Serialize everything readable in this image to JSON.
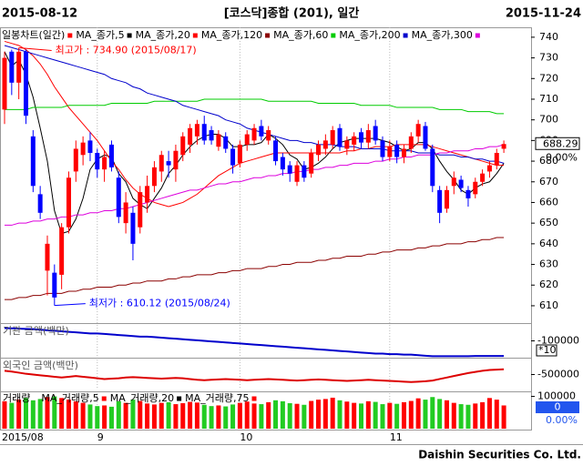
{
  "header": {
    "start_date": "2015-08-12",
    "title": "[코스닥]종합 (201), 일간",
    "end_date": "2015-11-24"
  },
  "footer": "Daishin Securities Co. Ltd.",
  "chart_data": [
    {
      "type": "candlestick",
      "series_label": "일봉차트(일간)",
      "label_color": "#ff0000",
      "categories": [
        "2015/08",
        null,
        null,
        null,
        null,
        null,
        null,
        null,
        null,
        null,
        null,
        null,
        null,
        "9",
        null,
        null,
        null,
        null,
        null,
        null,
        null,
        null,
        null,
        null,
        null,
        null,
        null,
        null,
        null,
        null,
        null,
        null,
        null,
        "10",
        null,
        null,
        null,
        null,
        null,
        null,
        null,
        null,
        null,
        null,
        null,
        null,
        null,
        null,
        null,
        null,
        null,
        null,
        null,
        null,
        "11",
        null,
        null,
        null,
        null,
        null,
        null,
        null,
        null,
        null,
        null,
        null,
        null,
        null,
        null,
        null,
        null
      ],
      "open": [
        705,
        733,
        718,
        733,
        692,
        664,
        627,
        626,
        625,
        648,
        675,
        683,
        690,
        684,
        676,
        688,
        672,
        650,
        655,
        648,
        660,
        668,
        675,
        680,
        676,
        683,
        688,
        692,
        698,
        695,
        687,
        692,
        686,
        679,
        688,
        690,
        697,
        690,
        690,
        682,
        678,
        670,
        678,
        674,
        683,
        686,
        688,
        696,
        686,
        688,
        694,
        689,
        697,
        690,
        682,
        688,
        682,
        686,
        692,
        697,
        686,
        666,
        657,
        668,
        671,
        666,
        664,
        670,
        675,
        678,
        686
      ],
      "high": [
        733,
        734,
        734.9,
        734,
        695,
        668,
        644,
        630,
        650,
        675,
        690,
        692,
        694,
        686,
        685,
        690,
        675,
        665,
        658,
        668,
        673,
        680,
        685,
        685,
        688,
        694,
        698,
        700,
        702,
        697,
        695,
        694,
        688,
        690,
        695,
        698,
        700,
        697,
        692,
        684,
        680,
        680,
        680,
        686,
        690,
        693,
        697,
        698,
        692,
        694,
        696,
        698,
        700,
        692,
        690,
        690,
        688,
        694,
        700,
        699,
        688,
        668,
        668,
        675,
        673,
        668,
        672,
        676,
        680,
        686,
        690
      ],
      "low": [
        698,
        712,
        710,
        698,
        665,
        652,
        615,
        610.12,
        618,
        645,
        670,
        678,
        680,
        672,
        670,
        675,
        650,
        645,
        632,
        645,
        655,
        665,
        670,
        672,
        670,
        680,
        684,
        688,
        688,
        688,
        685,
        684,
        674,
        677,
        685,
        688,
        690,
        688,
        678,
        673,
        670,
        668,
        670,
        672,
        680,
        683,
        686,
        685,
        683,
        685,
        686,
        686,
        688,
        680,
        680,
        679,
        679,
        684,
        689,
        685,
        665,
        650,
        655,
        664,
        665,
        658,
        662,
        668,
        672,
        676,
        684
      ],
      "close": [
        730,
        718,
        733,
        702,
        668,
        655,
        640,
        614,
        648,
        672,
        686,
        689,
        684,
        676,
        682,
        677,
        653,
        660,
        640,
        665,
        668,
        677,
        683,
        678,
        685,
        692,
        696,
        698,
        690,
        690,
        693,
        686,
        678,
        688,
        693,
        696,
        692,
        695,
        680,
        676,
        674,
        678,
        672,
        684,
        688,
        690,
        695,
        687,
        690,
        692,
        689,
        695,
        690,
        682,
        687,
        682,
        686,
        692,
        698,
        686,
        668,
        655,
        666,
        672,
        667,
        662,
        670,
        674,
        678,
        684,
        688.29
      ],
      "up_color": "#ff0000",
      "down_color": "#0000ff",
      "ylim": [
        601.6,
        744.8
      ],
      "yticks": [
        610,
        620,
        630,
        640,
        650,
        660,
        670,
        680,
        690,
        700,
        710,
        720,
        730,
        740
      ],
      "lines": [
        {
          "name": "MA_종가,5",
          "color": "#000000",
          "values": [
            733,
            726,
            729,
            722,
            711,
            696,
            680,
            656,
            645,
            646,
            652,
            662,
            676,
            681,
            683,
            682,
            674,
            670,
            662,
            659,
            657,
            662,
            667,
            674,
            678,
            683,
            687,
            690,
            692,
            693,
            693,
            691,
            687,
            687,
            688,
            688,
            689,
            693,
            691,
            688,
            683,
            681,
            676,
            677,
            679,
            682,
            686,
            689,
            690,
            691,
            691,
            691,
            691,
            690,
            689,
            687,
            685,
            686,
            689,
            689,
            686,
            680,
            675,
            671,
            666,
            664,
            667,
            669,
            670,
            674,
            679
          ]
        },
        {
          "name": "MA_종가,20",
          "color": "#ff0000",
          "values": [
            738,
            737,
            736,
            734,
            731,
            727,
            722,
            716,
            711,
            706,
            702,
            698,
            694,
            690,
            685,
            680,
            676,
            671,
            667,
            664,
            662,
            660,
            659,
            658,
            659,
            660,
            662,
            664,
            667,
            670,
            673,
            675,
            677,
            679,
            680,
            681,
            682,
            683,
            684,
            684,
            684,
            684,
            684,
            684,
            684,
            684,
            684,
            684,
            685,
            685,
            686,
            686,
            687,
            687,
            687,
            688,
            688,
            688,
            688,
            688,
            687,
            686,
            685,
            684,
            683,
            682,
            681,
            680,
            679,
            678,
            678
          ]
        },
        {
          "name": "MA_종가,120",
          "color": "#8b0000",
          "values": [
            613,
            613,
            614,
            614,
            615,
            615,
            616,
            616,
            616,
            617,
            617,
            618,
            618,
            619,
            619,
            619,
            620,
            620,
            621,
            621,
            622,
            622,
            622,
            623,
            623,
            624,
            624,
            625,
            625,
            625,
            626,
            626,
            627,
            627,
            628,
            628,
            628,
            629,
            629,
            630,
            630,
            631,
            631,
            631,
            632,
            632,
            633,
            633,
            634,
            634,
            634,
            635,
            635,
            636,
            636,
            637,
            637,
            637,
            638,
            638,
            639,
            639,
            640,
            640,
            640,
            641,
            641,
            642,
            642,
            643,
            643
          ]
        },
        {
          "name": "MA_종가,60",
          "color": "#00cc00",
          "values": [
            705,
            705,
            705,
            705,
            706,
            706,
            706,
            706,
            706,
            707,
            707,
            707,
            707,
            707,
            707,
            708,
            708,
            708,
            708,
            708,
            708,
            709,
            709,
            709,
            709,
            709,
            709,
            709,
            710,
            710,
            710,
            710,
            710,
            710,
            710,
            710,
            710,
            709,
            709,
            709,
            709,
            709,
            709,
            709,
            708,
            708,
            708,
            708,
            708,
            708,
            707,
            707,
            707,
            707,
            707,
            706,
            706,
            706,
            706,
            706,
            706,
            705,
            705,
            705,
            705,
            704,
            704,
            704,
            704,
            703,
            703
          ]
        },
        {
          "name": "MA_종가,200",
          "color": "#0000cc",
          "values": [
            736,
            735,
            734,
            733,
            732,
            731,
            730,
            729,
            728,
            727,
            726,
            725,
            724,
            723,
            722,
            720,
            719,
            718,
            716,
            715,
            713,
            712,
            711,
            710,
            709,
            707,
            706,
            705,
            704,
            703,
            702,
            700,
            699,
            698,
            696,
            695,
            694,
            693,
            692,
            691,
            690,
            690,
            689,
            689,
            688,
            688,
            688,
            687,
            687,
            687,
            686,
            686,
            686,
            686,
            685,
            685,
            685,
            685,
            684,
            684,
            684,
            683,
            683,
            683,
            682,
            682,
            681,
            681,
            680,
            680,
            679
          ]
        },
        {
          "name": "MA_종가,300",
          "color": "#dd00dd",
          "values": [
            649,
            649,
            650,
            650,
            651,
            651,
            652,
            652,
            653,
            653,
            654,
            654,
            655,
            655,
            656,
            656,
            657,
            657,
            658,
            659,
            660,
            661,
            662,
            663,
            664,
            665,
            666,
            666,
            667,
            668,
            669,
            669,
            670,
            670,
            671,
            672,
            672,
            673,
            673,
            674,
            674,
            675,
            675,
            676,
            676,
            677,
            677,
            678,
            678,
            679,
            679,
            679,
            680,
            680,
            681,
            681,
            682,
            682,
            683,
            683,
            683,
            684,
            684,
            685,
            685,
            685,
            686,
            686,
            687,
            687,
            688
          ]
        }
      ],
      "annotations": {
        "high": {
          "text": "최고가 : 734.90 (2015/08/17)",
          "color": "#ff0000"
        },
        "low": {
          "text": "최저가 : 610.12 (2015/08/24)",
          "color": "#0000ff"
        }
      },
      "last_price": 688.29,
      "last_change": "0.00%"
    },
    {
      "type": "line",
      "title": "기관 금액(백만)",
      "color": "#0000cc",
      "values": [
        20000,
        18000,
        15000,
        12000,
        10000,
        5000,
        0,
        -5000,
        -10000,
        -15000,
        -20000,
        -25000,
        -30000,
        -30000,
        -35000,
        -40000,
        -45000,
        -50000,
        -55000,
        -60000,
        -60000,
        -65000,
        -70000,
        -75000,
        -80000,
        -85000,
        -90000,
        -95000,
        -100000,
        -105000,
        -110000,
        -115000,
        -120000,
        -125000,
        -130000,
        -135000,
        -140000,
        -145000,
        -150000,
        -155000,
        -160000,
        -165000,
        -170000,
        -175000,
        -180000,
        -185000,
        -190000,
        -195000,
        -200000,
        -205000,
        -210000,
        -215000,
        -220000,
        -220000,
        -225000,
        -225000,
        -230000,
        -230000,
        -235000,
        -240000,
        -245000,
        -245000,
        -245000,
        -245000,
        -245000,
        -245000,
        -243000,
        -243000,
        -242000,
        -242000,
        -242000
      ],
      "ylim": [
        -250000,
        50000
      ],
      "yticks": [
        -100000
      ],
      "scale_note": "*10"
    },
    {
      "type": "line",
      "title": "외국인 금액(백만)",
      "color": "#dd0000",
      "values": [
        -400000,
        -420000,
        -450000,
        -480000,
        -500000,
        -520000,
        -540000,
        -560000,
        -580000,
        -560000,
        -540000,
        -560000,
        -580000,
        -600000,
        -620000,
        -610000,
        -600000,
        -580000,
        -570000,
        -580000,
        -590000,
        -600000,
        -610000,
        -600000,
        -590000,
        -600000,
        -620000,
        -640000,
        -650000,
        -640000,
        -630000,
        -620000,
        -630000,
        -640000,
        -650000,
        -640000,
        -630000,
        -620000,
        -630000,
        -640000,
        -650000,
        -660000,
        -650000,
        -640000,
        -630000,
        -640000,
        -650000,
        -660000,
        -670000,
        -660000,
        -650000,
        -640000,
        -650000,
        -660000,
        -670000,
        -680000,
        -690000,
        -700000,
        -690000,
        -680000,
        -660000,
        -620000,
        -580000,
        -540000,
        -500000,
        -460000,
        -430000,
        -400000,
        -380000,
        -370000,
        -360000
      ],
      "ylim": [
        -900000,
        -100000
      ],
      "yticks": [
        -500000
      ]
    },
    {
      "type": "bar",
      "title": "거래량",
      "up_color": "#ff0000",
      "down_color": "#22cc22",
      "legend": [
        {
          "name": "MA_거래량,5",
          "color": "#ff0000"
        },
        {
          "name": "MA_거래량,20",
          "color": "#000000"
        },
        {
          "name": "MA_거래량,75",
          "color": "#ff0000"
        }
      ],
      "values": [
        85000,
        80000,
        90000,
        95000,
        88000,
        92000,
        98000,
        100000,
        95000,
        90000,
        85000,
        80000,
        75000,
        70000,
        72000,
        68000,
        85000,
        80000,
        90000,
        86000,
        78000,
        75000,
        80000,
        82000,
        76000,
        79000,
        83000,
        81000,
        74000,
        70000,
        72000,
        69000,
        75000,
        80000,
        84000,
        78000,
        76000,
        82000,
        88000,
        85000,
        79000,
        77000,
        74000,
        86000,
        90000,
        92000,
        96000,
        88000,
        84000,
        80000,
        78000,
        85000,
        83000,
        76000,
        80000,
        77000,
        82000,
        86000,
        94000,
        90000,
        98000,
        92000,
        88000,
        80000,
        76000,
        74000,
        78000,
        82000,
        95000,
        90000,
        72000
      ],
      "ylim": [
        0,
        110000
      ],
      "yticks": [
        100000
      ],
      "last_value": 0,
      "last_change": "0.00%"
    }
  ]
}
